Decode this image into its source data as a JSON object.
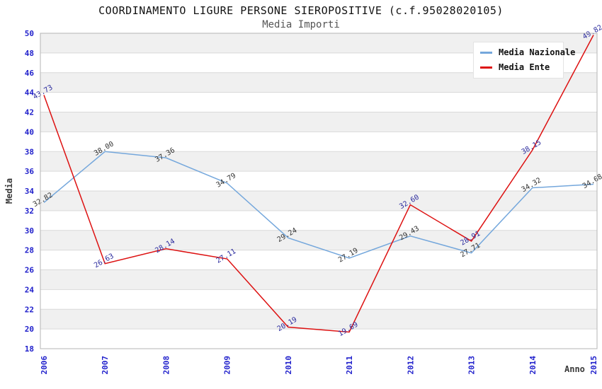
{
  "title": "COORDINAMENTO LIGURE PERSONE SIEROPOSITIVE (c.f.95028020105)",
  "subtitle": "Media Importi",
  "chart_data": {
    "type": "line",
    "title": "COORDINAMENTO LIGURE PERSONE SIEROPOSITIVE (c.f.95028020105)",
    "subtitle": "Media Importi",
    "x": [
      2006,
      2007,
      2008,
      2009,
      2010,
      2011,
      2012,
      2013,
      2014,
      2015
    ],
    "series": [
      {
        "name": "Media Nazionale",
        "color": "#74a7dc",
        "label_color": "#333333",
        "values": [
          32.82,
          38.0,
          37.36,
          34.79,
          29.24,
          27.19,
          29.43,
          27.71,
          34.32,
          34.68
        ]
      },
      {
        "name": "Media Ente",
        "color": "#dd1111",
        "label_color": "#2b2b9e",
        "values": [
          43.73,
          26.63,
          28.14,
          27.11,
          20.19,
          19.69,
          32.6,
          28.91,
          38.15,
          49.82
        ]
      }
    ],
    "xlabel": "Anno",
    "ylabel": "Media",
    "ylim": [
      18,
      50
    ],
    "ytick_step": 2,
    "legend_position": "top-right",
    "grid": "horizontal-bands",
    "band_colors": [
      "#ffffff",
      "#f0f0f0"
    ],
    "grid_line_color": "#d9d9d9",
    "plot_border_color": "#b5b5b5",
    "axis_tick_color": "#2121cc"
  }
}
